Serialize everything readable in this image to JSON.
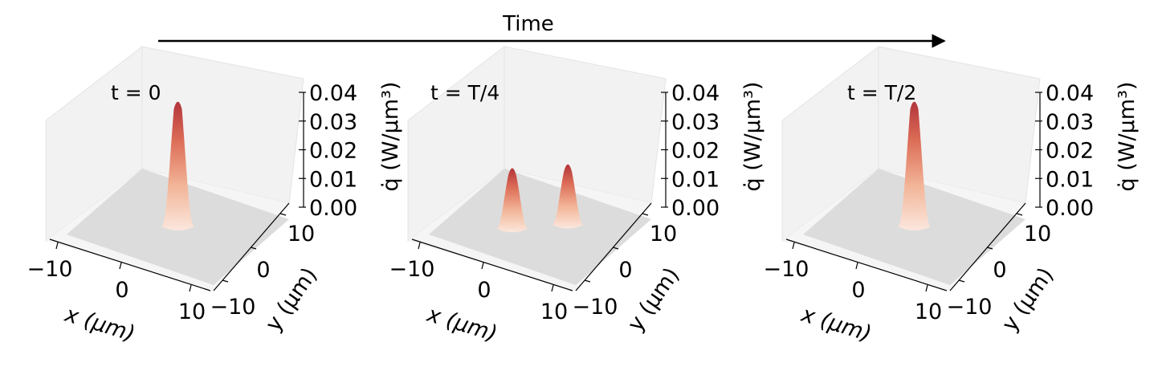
{
  "header": {
    "time_label": "Time"
  },
  "colors": {
    "pane": "#f2f2f2",
    "floor": "#dcdcdc",
    "peak_top": "#b2343a",
    "peak_base": "#fbe7dd",
    "axis": "#000000"
  },
  "chart_data": [
    {
      "type": "surface3d",
      "annotation": "t = 0",
      "xlabel": "x (μm)",
      "ylabel": "y (μm)",
      "zlabel": "q̇ (W/μm³)",
      "xticks": [
        "−10",
        "0",
        "10"
      ],
      "yticks": [
        "−10",
        "0",
        "10"
      ],
      "zticks": [
        "0.00",
        "0.01",
        "0.02",
        "0.03",
        "0.04"
      ],
      "xlim": [
        -12,
        12
      ],
      "ylim": [
        -12,
        12
      ],
      "zlim": [
        0,
        0.04
      ],
      "series": [
        {
          "x": 0,
          "y": 0,
          "peak": 0.045
        }
      ]
    },
    {
      "type": "surface3d",
      "annotation": "t = T/4",
      "xlabel": "x (μm)",
      "ylabel": "y (μm)",
      "zlabel": "q̇ (W/μm³)",
      "xticks": [
        "−10",
        "0",
        "10"
      ],
      "yticks": [
        "−10",
        "0",
        "10"
      ],
      "zticks": [
        "0.00",
        "0.01",
        "0.02",
        "0.03",
        "0.04"
      ],
      "xlim": [
        -12,
        12
      ],
      "ylim": [
        -12,
        12
      ],
      "zlim": [
        0,
        0.04
      ],
      "series": [
        {
          "x": -3,
          "y": -3,
          "peak": 0.0225
        },
        {
          "x": 3,
          "y": 3,
          "peak": 0.0225
        }
      ]
    },
    {
      "type": "surface3d",
      "annotation": "t = T/2",
      "xlabel": "x (μm)",
      "ylabel": "y (μm)",
      "zlabel": "q̇ (W/μm³)",
      "xticks": [
        "−10",
        "0",
        "10"
      ],
      "yticks": [
        "−10",
        "0",
        "10"
      ],
      "zticks": [
        "0.00",
        "0.01",
        "0.02",
        "0.03",
        "0.04"
      ],
      "xlim": [
        -12,
        12
      ],
      "ylim": [
        -12,
        12
      ],
      "zlim": [
        0,
        0.04
      ],
      "series": [
        {
          "x": 0,
          "y": 0,
          "peak": 0.045
        }
      ]
    }
  ]
}
